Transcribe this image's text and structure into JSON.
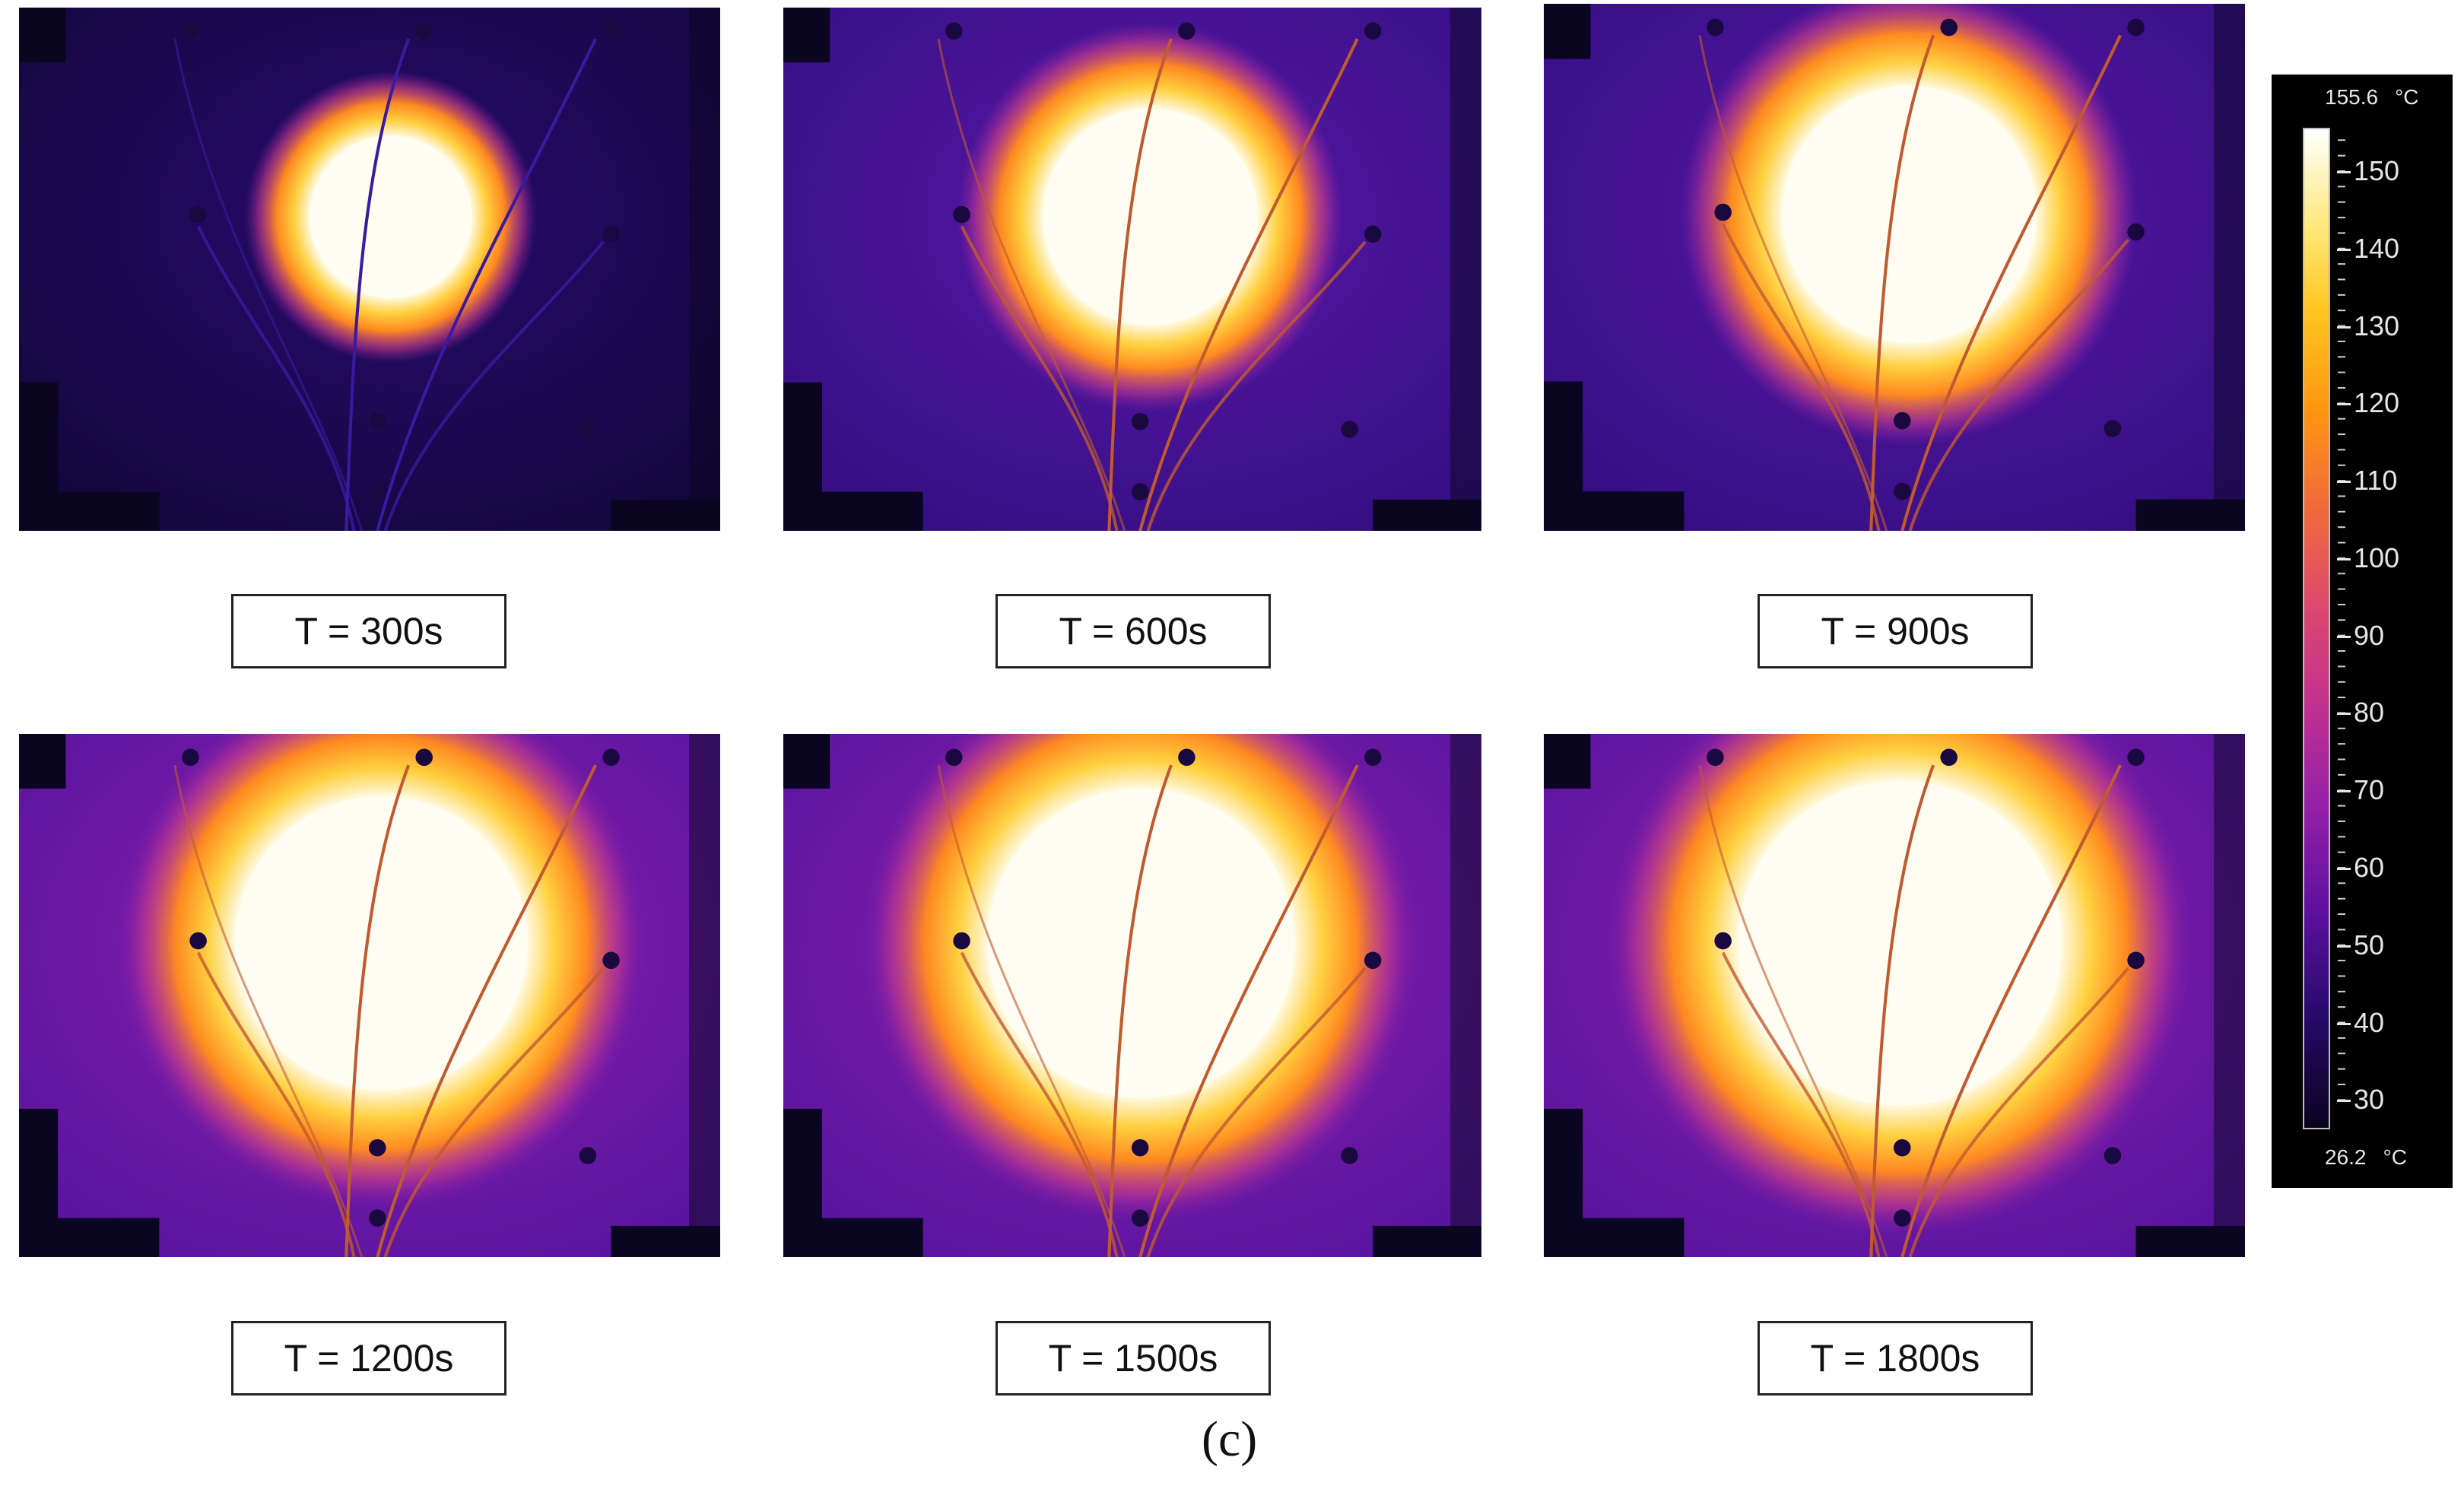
{
  "panels": [
    {
      "time_label": "T = 300s",
      "hotspot_radius": 0.21
    },
    {
      "time_label": "T = 600s",
      "hotspot_radius": 0.28
    },
    {
      "time_label": "T = 900s",
      "hotspot_radius": 0.33
    },
    {
      "time_label": "T = 1200s",
      "hotspot_radius": 0.38
    },
    {
      "time_label": "T = 1500s",
      "hotspot_radius": 0.4
    },
    {
      "time_label": "T = 1800s",
      "hotspot_radius": 0.42
    }
  ],
  "caption": "(c)",
  "colorbar": {
    "max_label": "155.6",
    "min_label": "26.2",
    "unit": "°C",
    "min_value": 26.2,
    "max_value": 155.6,
    "ticks": [
      "150",
      "140",
      "130",
      "120",
      "110",
      "100",
      "90",
      "80",
      "70",
      "60",
      "50",
      "40",
      "30"
    ]
  },
  "colors": {
    "hot": "#ffffff",
    "warm": "#ffb020",
    "mid": "#c03090",
    "cool": "#3a0e8a",
    "cold": "#0c0530"
  }
}
